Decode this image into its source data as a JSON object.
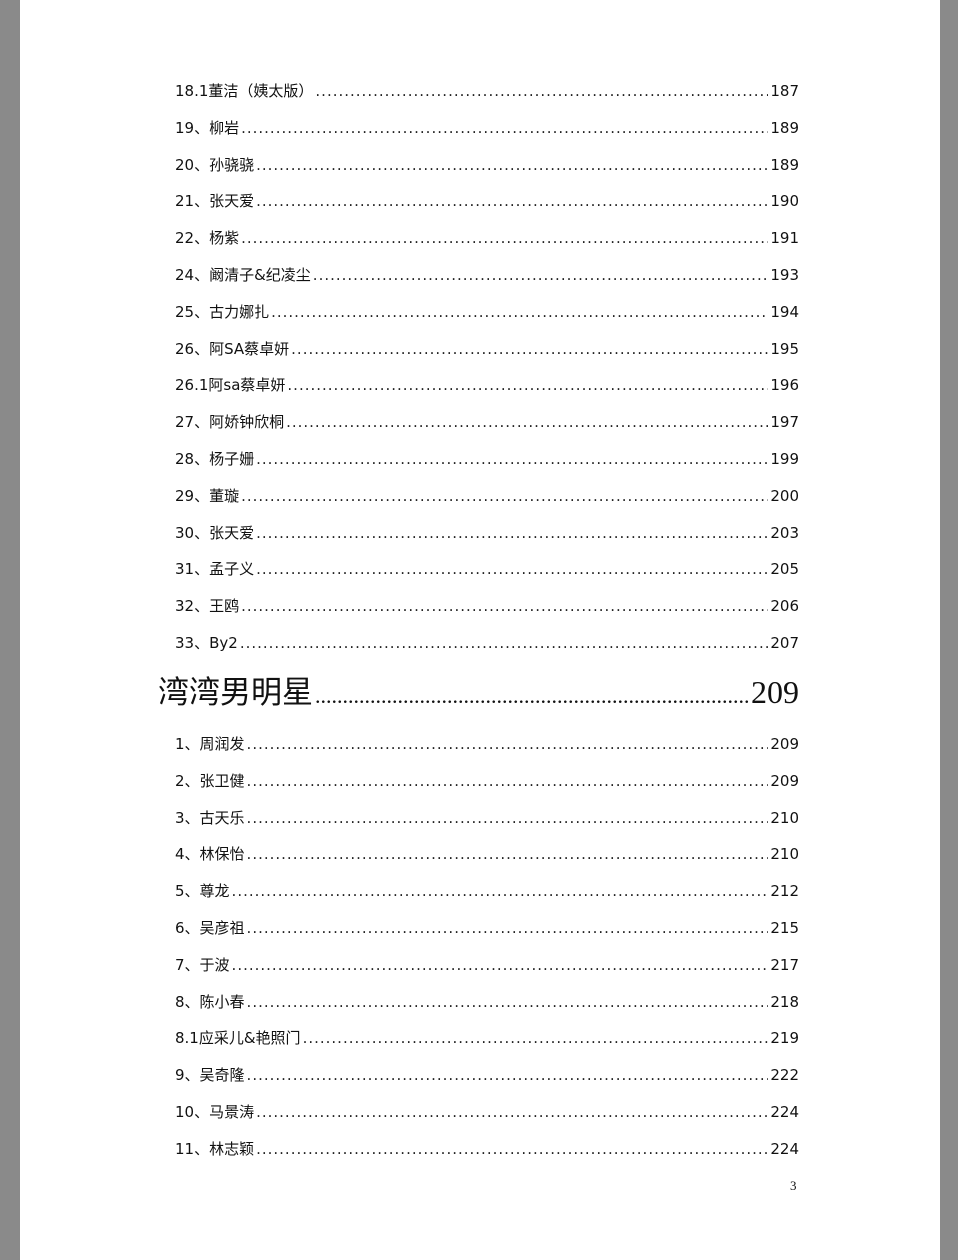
{
  "toc_top": [
    {
      "label": "18.1董洁（姨太版）",
      "page": "187"
    },
    {
      "label": "19、柳岩",
      "page": "189"
    },
    {
      "label": "20、孙骁骁",
      "page": "189"
    },
    {
      "label": "21、张天爱",
      "page": "190"
    },
    {
      "label": "22、杨紫",
      "page": "191"
    },
    {
      "label": "24、阚清子&纪凌尘",
      "page": "193"
    },
    {
      "label": "25、古力娜扎",
      "page": "194"
    },
    {
      "label": "26、阿SA蔡卓妍",
      "page": "195"
    },
    {
      "label": "26.1阿sa蔡卓妍",
      "page": "196"
    },
    {
      "label": "27、阿娇钟欣桐",
      "page": "197"
    },
    {
      "label": "28、杨子姗",
      "page": "199"
    },
    {
      "label": "29、董璇",
      "page": "200"
    },
    {
      "label": "30、张天爱",
      "page": "203"
    },
    {
      "label": "31、孟子义",
      "page": "205"
    },
    {
      "label": "32、王鸥",
      "page": "206"
    },
    {
      "label": "33、By2",
      "page": "207"
    }
  ],
  "section": {
    "label": "湾湾男明星",
    "page": "209"
  },
  "toc_bottom": [
    {
      "label": "1、周润发",
      "page": "209"
    },
    {
      "label": "2、张卫健",
      "page": "209"
    },
    {
      "label": "3、古天乐",
      "page": "210"
    },
    {
      "label": "4、林保怡",
      "page": "210"
    },
    {
      "label": "5、尊龙",
      "page": "212"
    },
    {
      "label": "6、吴彦祖",
      "page": "215"
    },
    {
      "label": "7、于波",
      "page": "217"
    },
    {
      "label": "8、陈小春",
      "page": "218"
    },
    {
      "label": "8.1应采儿&艳照门",
      "page": "219"
    },
    {
      "label": "9、吴奇隆",
      "page": "222"
    },
    {
      "label": "10、马景涛",
      "page": "224"
    },
    {
      "label": "11、林志颖",
      "page": "224"
    }
  ],
  "page_number": "3"
}
